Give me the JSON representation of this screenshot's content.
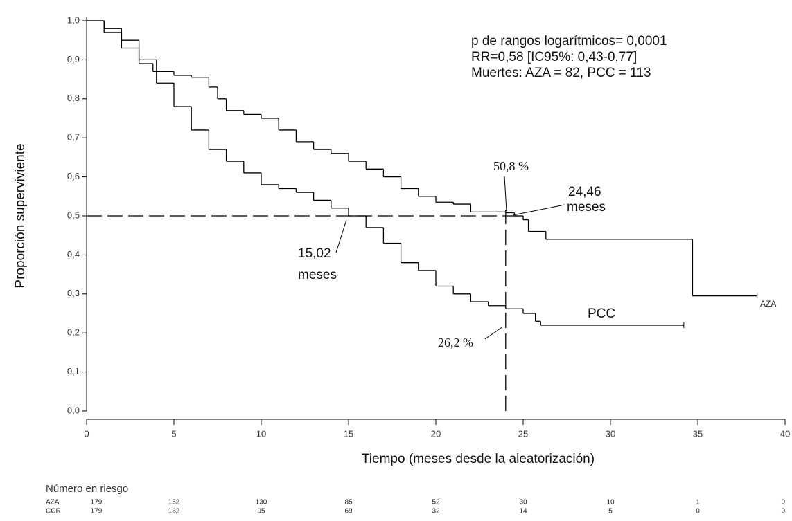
{
  "chart_data": {
    "type": "line",
    "step": "post",
    "x_label": "Tiempo (meses desde la aleatorización)",
    "y_label": "Proporción superviviente",
    "xlim": [
      0,
      40
    ],
    "ylim": [
      0,
      1
    ],
    "xticks": [
      0,
      5,
      10,
      15,
      20,
      25,
      30,
      35,
      40
    ],
    "yticks": [
      {
        "value": 0,
        "label": "0,0"
      },
      {
        "value": 0.1,
        "label": "0,1"
      },
      {
        "value": 0.2,
        "label": "0,2"
      },
      {
        "value": 0.3,
        "label": "0,3"
      },
      {
        "value": 0.4,
        "label": "0,4"
      },
      {
        "value": 0.5,
        "label": "0,5"
      },
      {
        "value": 0.6,
        "label": "0,6"
      },
      {
        "value": 0.7,
        "label": "0,7"
      },
      {
        "value": 0.8,
        "label": "0,8"
      },
      {
        "value": 0.9,
        "label": "0,9"
      },
      {
        "value": 1,
        "label": "1,0"
      }
    ],
    "series": [
      {
        "name": "AZA",
        "color": "#000000",
        "x": [
          0,
          1,
          2,
          3,
          3.8,
          5,
          6,
          7,
          7.5,
          8,
          9,
          10,
          11,
          12,
          13,
          14,
          15,
          16,
          17,
          18,
          19,
          20,
          21,
          22,
          23,
          24,
          24.5,
          25,
          25.3,
          26.3,
          34.7,
          38.4
        ],
        "values": [
          1.0,
          0.97,
          0.93,
          0.89,
          0.87,
          0.86,
          0.855,
          0.83,
          0.8,
          0.77,
          0.76,
          0.75,
          0.72,
          0.69,
          0.67,
          0.66,
          0.64,
          0.62,
          0.6,
          0.57,
          0.55,
          0.535,
          0.53,
          0.51,
          0.51,
          0.508,
          0.5,
          0.49,
          0.46,
          0.44,
          0.295,
          0.295
        ]
      },
      {
        "name": "PCC",
        "color": "#000000",
        "x": [
          0,
          1,
          2,
          3,
          4,
          5,
          6,
          7,
          8,
          9,
          10,
          11,
          12,
          13,
          14,
          15,
          16,
          17,
          18,
          19,
          20,
          21,
          22,
          23,
          24,
          25,
          25.7,
          26,
          34.2
        ],
        "values": [
          1.0,
          0.98,
          0.95,
          0.9,
          0.84,
          0.78,
          0.72,
          0.67,
          0.64,
          0.61,
          0.58,
          0.57,
          0.56,
          0.54,
          0.52,
          0.5,
          0.47,
          0.43,
          0.38,
          0.36,
          0.32,
          0.3,
          0.28,
          0.27,
          0.262,
          0.25,
          0.23,
          0.22,
          0.22
        ]
      }
    ],
    "reference_lines": {
      "y": 0.5,
      "x": 24
    },
    "annotations": [
      "p de rangos logarítmicos= 0,0001",
      "RR=0,58 [IC95%: 0,43-0,77]",
      "Muertes: AZA = 82, PCC = 113",
      "50,8 %",
      "24,46",
      "meses",
      "15,02",
      "meses",
      "26,2 %"
    ],
    "risk_table": {
      "title": "Número en riesgo",
      "rows": [
        {
          "label": "AZA",
          "values": [
            179,
            152,
            130,
            85,
            52,
            30,
            10,
            1,
            0
          ]
        },
        {
          "label": "CCR",
          "values": [
            179,
            132,
            95,
            69,
            32,
            14,
            5,
            0,
            0
          ]
        }
      ]
    }
  }
}
